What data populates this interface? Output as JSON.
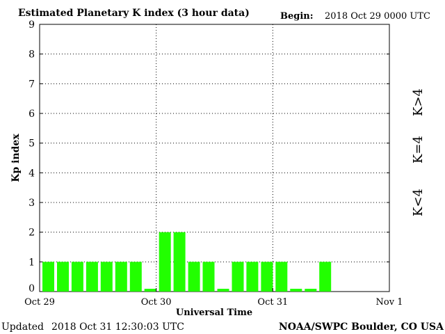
{
  "chart_data": {
    "type": "bar",
    "title": "Estimated Planetary K index (3 hour data)",
    "begin_label": "Begin:",
    "begin_value": "2018 Oct 29 0000 UTC",
    "xlabel": "Universal Time",
    "ylabel": "Kp index",
    "ylim": [
      0,
      9
    ],
    "yticks": [
      "0",
      "1",
      "2",
      "3",
      "4",
      "5",
      "6",
      "7",
      "8",
      "9"
    ],
    "xlim_days": [
      0,
      3
    ],
    "xticks": [
      "Oct 29",
      "Oct 30",
      "Oct 31",
      "Nov 1"
    ],
    "interval_hours": 3,
    "values": [
      1,
      1,
      1,
      1,
      1,
      1,
      1,
      0,
      2,
      2,
      1,
      1,
      0,
      1,
      1,
      1,
      1,
      0,
      0,
      1
    ],
    "grid": true,
    "legend": [
      {
        "label": "K<4",
        "color": "#22ee22"
      },
      {
        "label": "K=4",
        "color": "#f5e000"
      },
      {
        "label": "K>4",
        "color": "#ee2222"
      }
    ],
    "bar_color": "#22ff00"
  },
  "footer": {
    "updated_label": "Updated",
    "updated_value": "2018 Oct 31 12:30:03 UTC",
    "source": "NOAA/SWPC Boulder, CO USA"
  }
}
